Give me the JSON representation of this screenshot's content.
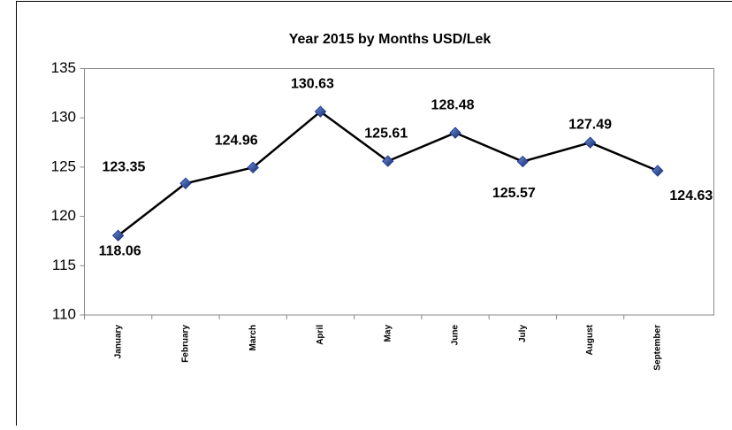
{
  "chart_data": {
    "type": "line",
    "title": "Year 2015 by Months USD/Lek",
    "categories": [
      "January",
      "February",
      "March",
      "April",
      "May",
      "June",
      "July",
      "August",
      "September"
    ],
    "series": [
      {
        "name": "USD/Lek",
        "color": "#000000",
        "marker_color": "#1f3a93",
        "values": [
          118.06,
          123.35,
          124.96,
          130.63,
          125.61,
          128.48,
          125.57,
          127.49,
          124.63
        ]
      }
    ],
    "ylim": [
      110,
      135
    ],
    "yticks": [
      110,
      115,
      120,
      125,
      130,
      135
    ],
    "grid": false,
    "legend": false
  }
}
